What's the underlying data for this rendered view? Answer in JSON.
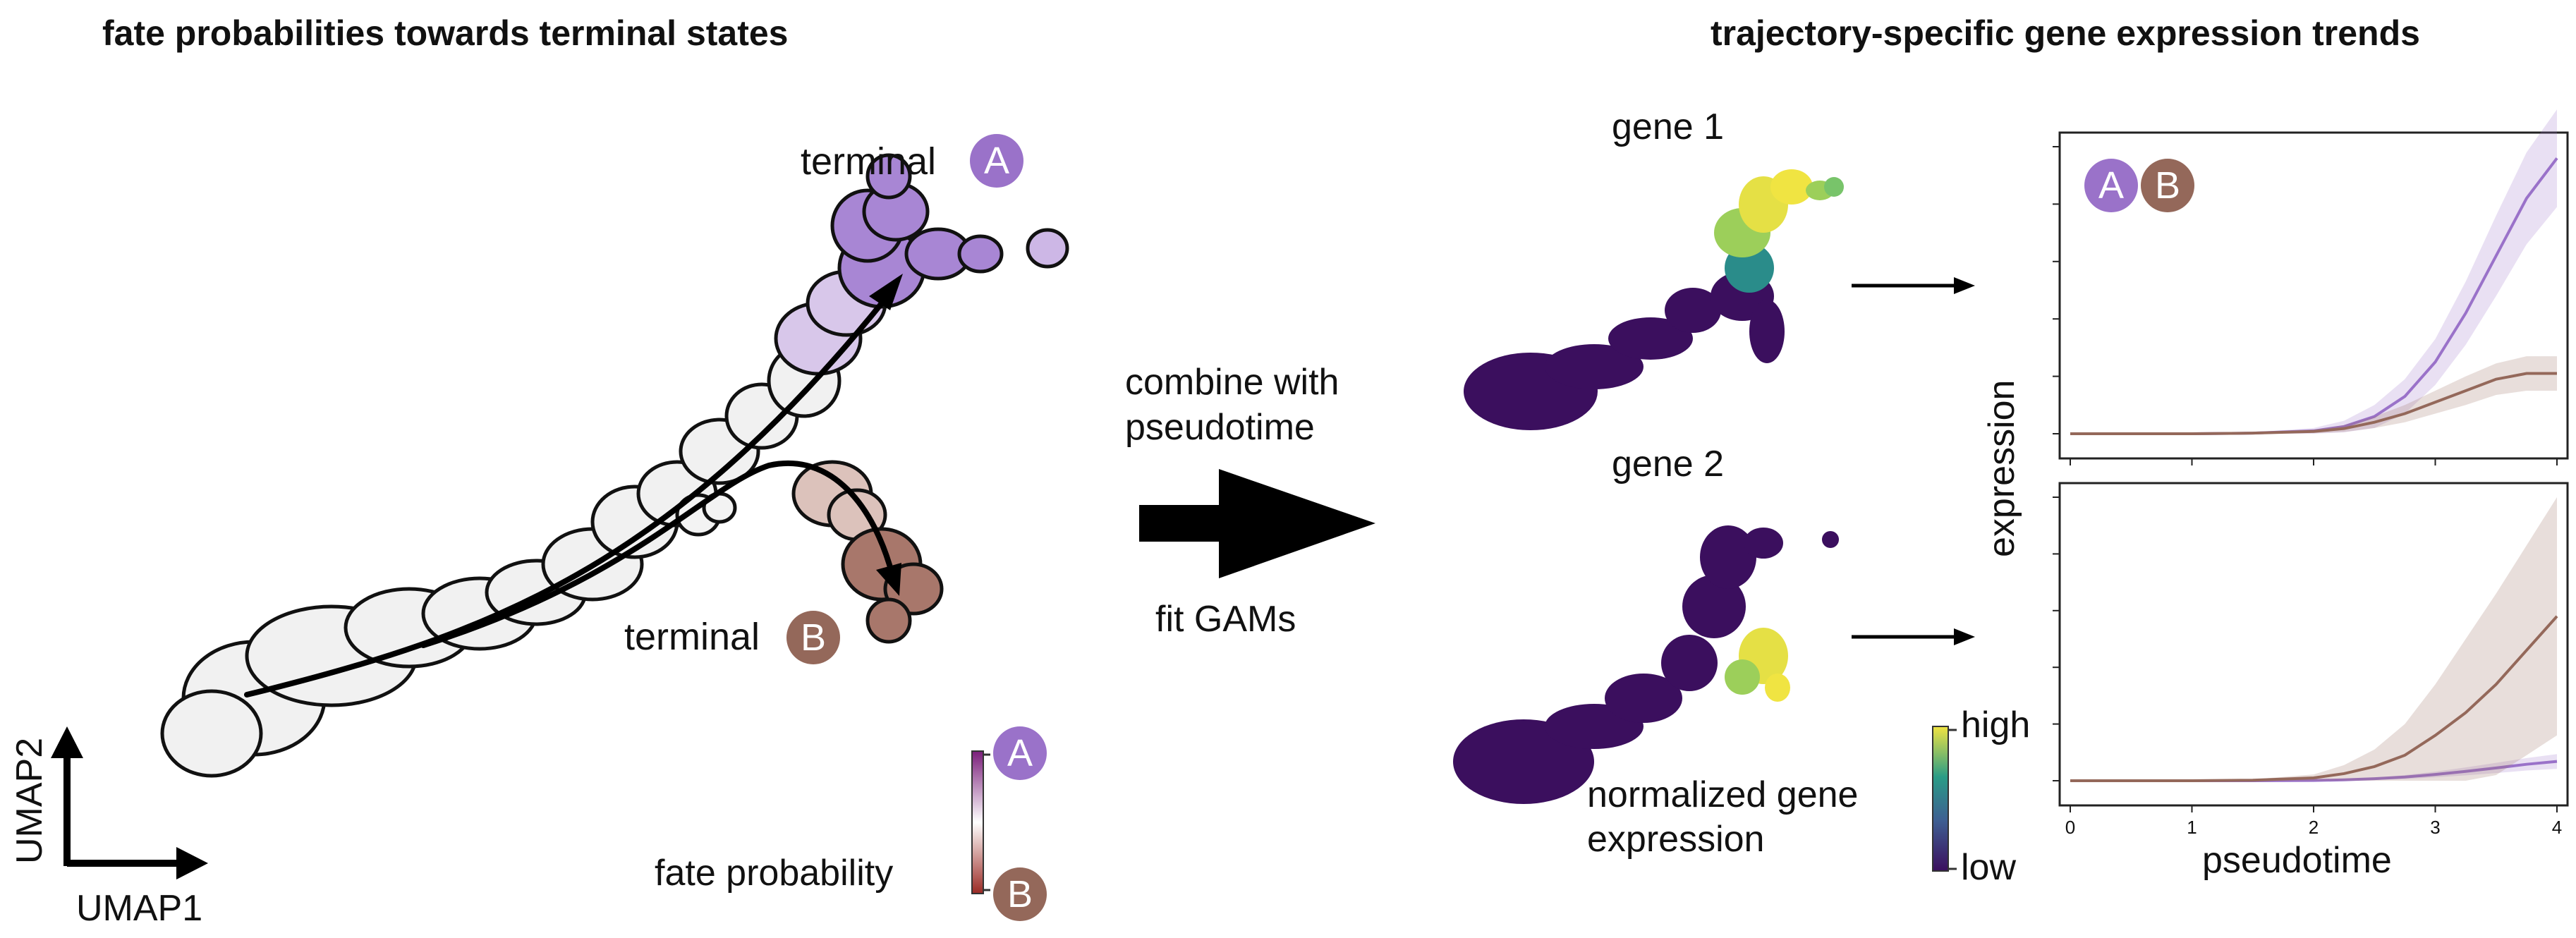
{
  "left": {
    "title": "fate probabilities towards terminal states",
    "terminal_label": "terminal",
    "terminal_a_letter": "A",
    "terminal_b_letter": "B",
    "umap_x": "UMAP1",
    "umap_y": "UMAP2",
    "fate_probability_label": "fate probability",
    "colorbar_top_letter": "A",
    "colorbar_bottom_letter": "B"
  },
  "middle": {
    "combine_line1": "combine with",
    "combine_line2": "pseudotime",
    "fit_label": "fit GAMs"
  },
  "right": {
    "title": "trajectory-specific gene expression trends",
    "gene1_label": "gene 1",
    "gene2_label": "gene 2",
    "normalized_line1": "normalized gene",
    "normalized_line2": "expression",
    "colorbar_high": "high",
    "colorbar_low": "low",
    "legend_a_letter": "A",
    "legend_b_letter": "B"
  },
  "colors": {
    "terminal_a": "#9a72c9",
    "terminal_b": "#94685a",
    "gene_low": "#3b0f5e",
    "gene_mid": "#2a8c8a",
    "gene_high": "#f0e442"
  },
  "chart_data": [
    {
      "type": "line",
      "panel": "top",
      "xlabel": "pseudotime",
      "ylabel": "expression",
      "xlim": [
        0,
        4
      ],
      "ylim": [
        0,
        1
      ],
      "x_ticks": [
        "0",
        "1",
        "2",
        "3",
        "4"
      ],
      "x": [
        0,
        0.5,
        1,
        1.5,
        2,
        2.25,
        2.5,
        2.75,
        3,
        3.25,
        3.5,
        3.75,
        4
      ],
      "series": [
        {
          "legend": "A",
          "color": "#9a72c9",
          "values": [
            0.0,
            0.0,
            0.0,
            0.002,
            0.01,
            0.025,
            0.06,
            0.13,
            0.25,
            0.42,
            0.62,
            0.82,
            0.96
          ],
          "band": [
            0.0,
            0.0,
            0.0,
            0.003,
            0.01,
            0.02,
            0.04,
            0.06,
            0.08,
            0.11,
            0.14,
            0.16,
            0.17
          ]
        },
        {
          "legend": "B",
          "color": "#94685a",
          "values": [
            0.0,
            0.0,
            0.0,
            0.002,
            0.008,
            0.018,
            0.04,
            0.07,
            0.11,
            0.15,
            0.19,
            0.21,
            0.21
          ],
          "band": [
            0.0,
            0.0,
            0.0,
            0.002,
            0.006,
            0.012,
            0.02,
            0.03,
            0.04,
            0.05,
            0.055,
            0.06,
            0.06
          ]
        }
      ]
    },
    {
      "type": "line",
      "panel": "bottom",
      "xlabel": "pseudotime",
      "ylabel": "expression",
      "xlim": [
        0,
        4
      ],
      "ylim": [
        0,
        1
      ],
      "x_ticks": [
        "0",
        "1",
        "2",
        "3",
        "4"
      ],
      "x": [
        0,
        0.5,
        1,
        1.5,
        2,
        2.25,
        2.5,
        2.75,
        3,
        3.25,
        3.5,
        3.75,
        4
      ],
      "series": [
        {
          "legend": "A",
          "color": "#9a72c9",
          "values": [
            0.0,
            0.0,
            0.0,
            0.0,
            0.001,
            0.003,
            0.007,
            0.013,
            0.022,
            0.033,
            0.045,
            0.058,
            0.068
          ],
          "band": [
            0.0,
            0.0,
            0.0,
            0.0,
            0.001,
            0.002,
            0.004,
            0.007,
            0.01,
            0.014,
            0.018,
            0.022,
            0.026
          ]
        },
        {
          "legend": "B",
          "color": "#94685a",
          "values": [
            0.0,
            0.0,
            0.0,
            0.002,
            0.01,
            0.025,
            0.05,
            0.09,
            0.16,
            0.24,
            0.34,
            0.46,
            0.58
          ],
          "band": [
            0.0,
            0.0,
            0.0,
            0.003,
            0.012,
            0.03,
            0.06,
            0.11,
            0.18,
            0.26,
            0.32,
            0.37,
            0.42
          ]
        }
      ]
    }
  ]
}
